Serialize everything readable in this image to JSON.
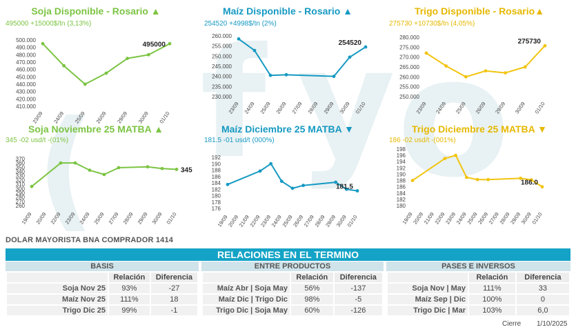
{
  "colors": {
    "soja": "#7cc443",
    "maiz": "#1599c2",
    "trigo": "#f2c40f",
    "banner": "#14a3c6"
  },
  "chart_data": [
    {
      "id": "soja_disp",
      "type": "line",
      "title": "Soja Disponible - Rosario ▲",
      "subtitle": "495000 +15000$/tn (3,13%)",
      "categories": [
        "23/09",
        "24/09",
        "25/09",
        "26/09",
        "29/09",
        "30/09",
        "01/10"
      ],
      "values": [
        495000,
        465000,
        440000,
        455000,
        475000,
        480000,
        495000
      ],
      "ylim": [
        410000,
        500000
      ],
      "yticks": [
        "410.000",
        "420.000",
        "430.000",
        "440.000",
        "450.000",
        "460.000",
        "470.000",
        "480.000",
        "490.000",
        "500.000"
      ],
      "last_label": "495000",
      "color_key": "soja"
    },
    {
      "id": "maiz_disp",
      "type": "line",
      "title": "Maíz Disponible - Rosario ▲",
      "subtitle": "254520 +4998$/tn (2%)",
      "categories": [
        "23/09",
        "24/09",
        "25/09",
        "26/09",
        "27/09",
        "28/09",
        "29/09",
        "30/09",
        "01/10"
      ],
      "values": [
        258500,
        252800,
        240500,
        240800,
        null,
        null,
        240000,
        249500,
        254520
      ],
      "ylim": [
        230000,
        260000
      ],
      "yticks": [
        "230.000",
        "235.000",
        "240.000",
        "245.000",
        "250.000",
        "255.000",
        "260.000"
      ],
      "last_label": "254520",
      "color_key": "maiz"
    },
    {
      "id": "trigo_disp",
      "type": "line",
      "title": "Trigo Disponible - Rosario▲",
      "subtitle": "275730 +10730$/tn (4,05%)",
      "categories": [
        "23/09",
        "24/09",
        "25/09",
        "26/09",
        "29/09",
        "30/09",
        "01/10"
      ],
      "values": [
        272000,
        265500,
        260000,
        263000,
        262000,
        265000,
        275730
      ],
      "ylim": [
        250000,
        280000
      ],
      "yticks": [
        "250.000",
        "255.000",
        "260.000",
        "265.000",
        "270.000",
        "275.000",
        "280.000"
      ],
      "last_label": "275730",
      "color_key": "trigo"
    },
    {
      "id": "soja_matba",
      "type": "line",
      "title": "Soja Noviembre 25 MATBA ▲",
      "subtitle": "345 -02 usd/t -(01%)",
      "categories": [
        "19/09",
        "20/09",
        "22/09",
        "23/09",
        "24/09",
        "25/09",
        "27/09",
        "28/09",
        "29/09",
        "30/09",
        "01/10"
      ],
      "values": [
        305,
        null,
        360,
        360,
        343,
        333,
        349,
        null,
        351,
        347,
        345
      ],
      "ylim": [
        260,
        370
      ],
      "yticks": [
        "260",
        "270",
        "280",
        "290",
        "300",
        "310",
        "320",
        "330",
        "340",
        "350",
        "360",
        "370"
      ],
      "last_label": "345",
      "color_key": "soja"
    },
    {
      "id": "maiz_matba",
      "type": "line",
      "title": "Maíz Diciembre 25 MATBA ▼",
      "subtitle": "181.5 -01 usd/t (000%)",
      "categories": [
        "19/09",
        "20/09",
        "21/09",
        "22/09",
        "23/09",
        "24/09",
        "25/09",
        "26/09",
        "27/09",
        "28/09",
        "29/09",
        "30/09",
        "01/10"
      ],
      "values": [
        183.5,
        null,
        null,
        187.7,
        190,
        184.5,
        182.3,
        183.2,
        null,
        null,
        184.2,
        182,
        181.5
      ],
      "ylim": [
        176,
        192
      ],
      "yticks": [
        "176",
        "178",
        "180",
        "182",
        "184",
        "186",
        "188",
        "190",
        "192"
      ],
      "last_label": "181.5",
      "color_key": "maiz"
    },
    {
      "id": "trigo_matba",
      "type": "line",
      "title": "Trigo Diciembre 25 MATBA ▼",
      "subtitle": "186 -02 usd/t -(001%)",
      "categories": [
        "19/09",
        "20/09",
        "21/09",
        "22/09",
        "23/09",
        "24/09",
        "25/09",
        "26/09",
        "27/09",
        "28/09",
        "29/09",
        "30/09",
        "01/10"
      ],
      "values": [
        188,
        null,
        null,
        195,
        196,
        189,
        188.3,
        188.3,
        null,
        null,
        188.7,
        188.2,
        186
      ],
      "ylim": [
        180,
        198
      ],
      "yticks": [
        "180",
        "182",
        "184",
        "186",
        "188",
        "190",
        "192",
        "194",
        "196",
        "198"
      ],
      "last_label": "186.0",
      "color_key": "trigo"
    }
  ],
  "dolar": "DOLAR MAYORISTA BNA COMPRADOR 1414",
  "banner": "RELACIONES EN EL TERMINO",
  "sections": {
    "basis": {
      "title": "BASIS",
      "headers": [
        "",
        "Relación",
        "Diferencia"
      ],
      "rows": [
        [
          "Soja Nov 25",
          "93%",
          "-27"
        ],
        [
          "Maíz Nov 25",
          "111%",
          "18"
        ],
        [
          "Trigo Dic 25",
          "99%",
          "-1"
        ]
      ]
    },
    "productos": {
      "title": "ENTRE PRODUCTOS",
      "headers": [
        "",
        "Relación",
        "Diferencia"
      ],
      "rows": [
        [
          "Maíz Abr | Soja May",
          "56%",
          "-137"
        ],
        [
          "Maíz Dic | Trigo Dic",
          "98%",
          "-5"
        ],
        [
          "Trigo Dic | Soja May",
          "60%",
          "-126"
        ]
      ]
    },
    "pases": {
      "title": "PASES E INVERSOS",
      "headers": [
        "",
        "Relación",
        "Diferencia"
      ],
      "rows": [
        [
          "Soja Nov | May",
          "111%",
          "33"
        ],
        [
          "Maíz Sep | Dic",
          "100%",
          "0"
        ],
        [
          "Trigo Dic | Mar",
          "103%",
          "6,0"
        ]
      ]
    }
  },
  "footer": {
    "label": "Cierre",
    "date": "1/10/2025"
  },
  "watermark": {
    "c": "(",
    "f": "f",
    "y": "y",
    "o": "o"
  }
}
